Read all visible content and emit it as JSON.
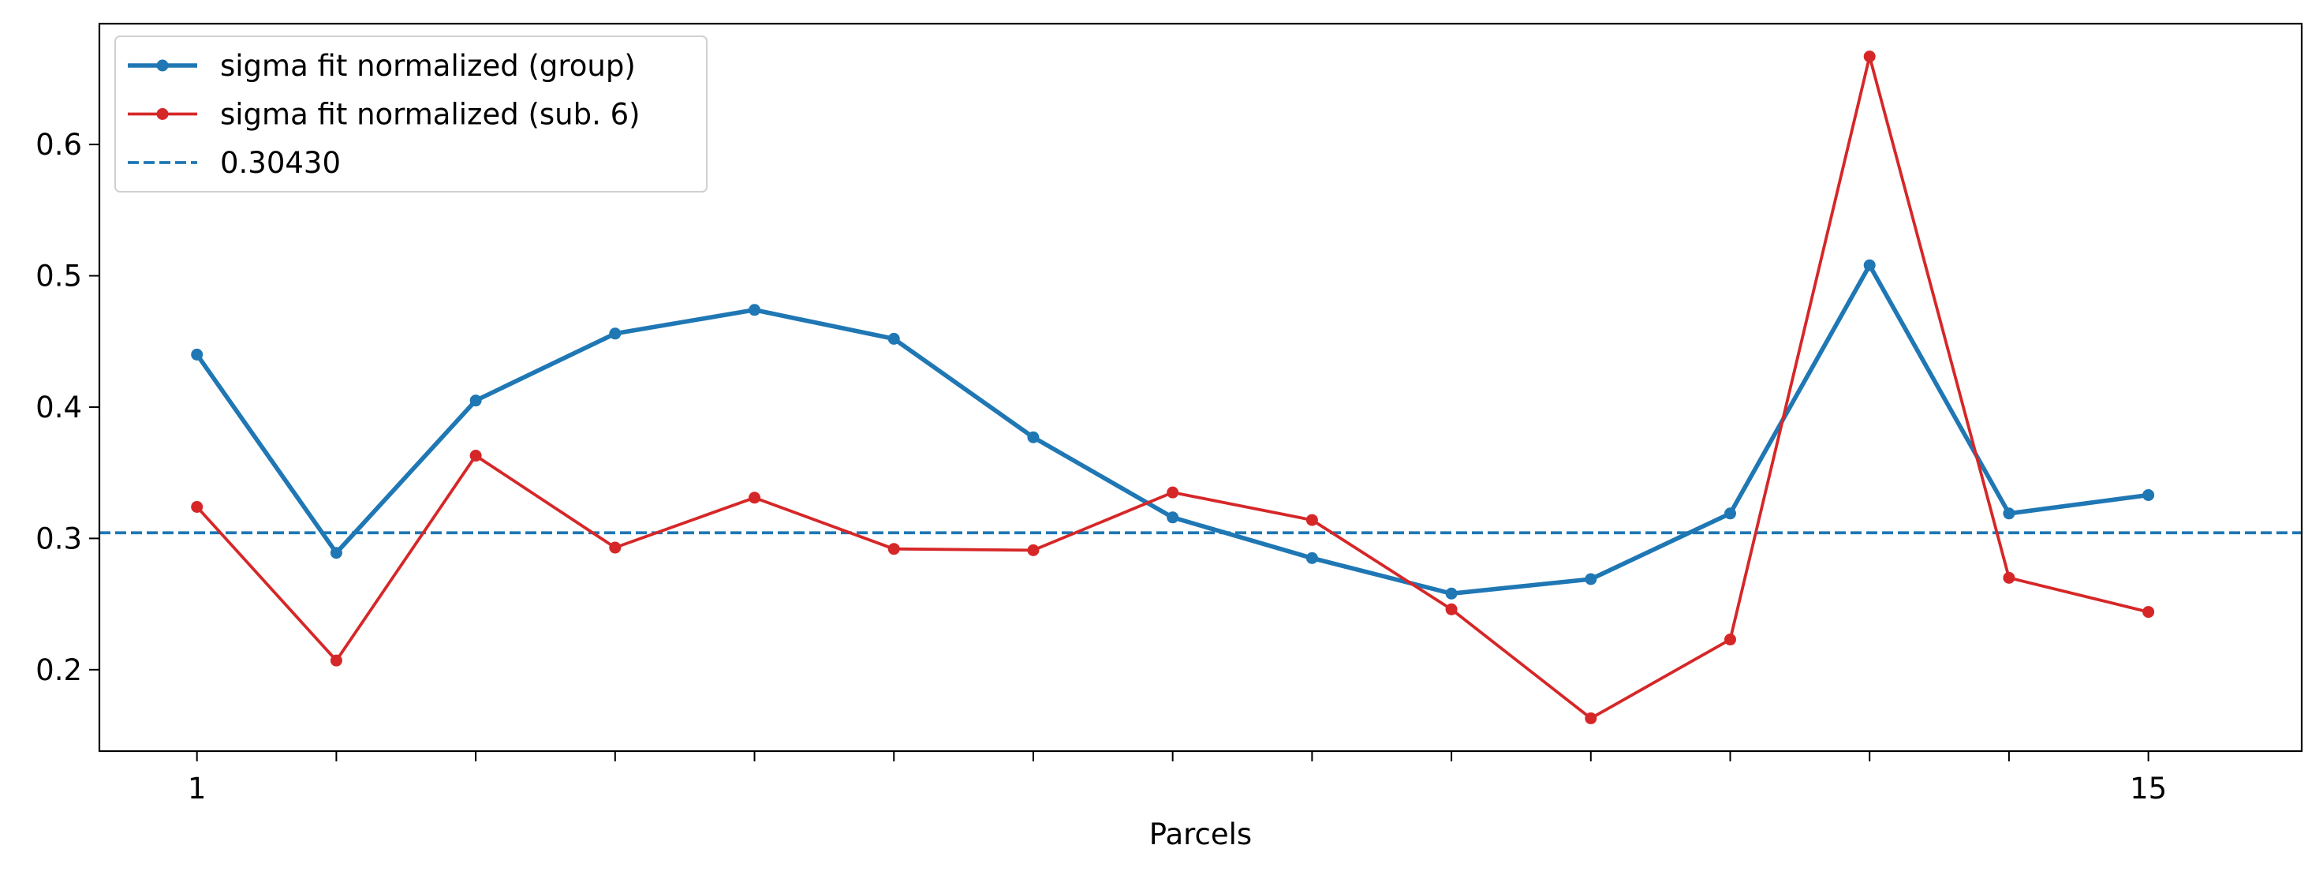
{
  "chart_data": {
    "type": "line",
    "title": "",
    "xlabel": "Parcels",
    "ylabel": "",
    "x": [
      1,
      2,
      3,
      4,
      5,
      6,
      7,
      8,
      9,
      10,
      11,
      12,
      13,
      14,
      15
    ],
    "x_tick_labels": [
      {
        "x": 1,
        "label": "1"
      },
      {
        "x": 15,
        "label": "15"
      }
    ],
    "x_minor_ticks": [
      2,
      3,
      4,
      5,
      6,
      7,
      8,
      9,
      10,
      11,
      12,
      13,
      14
    ],
    "xlim": [
      0.3,
      16.1
    ],
    "ylim": [
      0.138,
      0.692
    ],
    "y_ticks": [
      0.2,
      0.3,
      0.4,
      0.5,
      0.6
    ],
    "y_tick_labels": [
      "0.2",
      "0.3",
      "0.4",
      "0.5",
      "0.6"
    ],
    "grid": false,
    "legend_position": "upper-left",
    "series": [
      {
        "name": "sigma fit normalized (group)",
        "color": "#1f77b4",
        "style": "solid-thick-markers",
        "values": [
          0.44,
          0.289,
          0.405,
          0.456,
          0.474,
          0.452,
          0.377,
          0.316,
          0.285,
          0.258,
          0.269,
          0.319,
          0.508,
          0.319,
          0.333
        ]
      },
      {
        "name": "sigma fit normalized (sub. 6)",
        "color": "#d62728",
        "style": "solid-markers",
        "values": [
          0.324,
          0.207,
          0.363,
          0.293,
          0.331,
          0.292,
          0.291,
          0.335,
          0.314,
          0.246,
          0.163,
          0.223,
          0.667,
          0.27,
          0.244
        ]
      }
    ],
    "reference_lines": [
      {
        "name": "0.30430",
        "y": 0.3043,
        "color": "#1f77b4",
        "style": "dashed"
      }
    ]
  }
}
